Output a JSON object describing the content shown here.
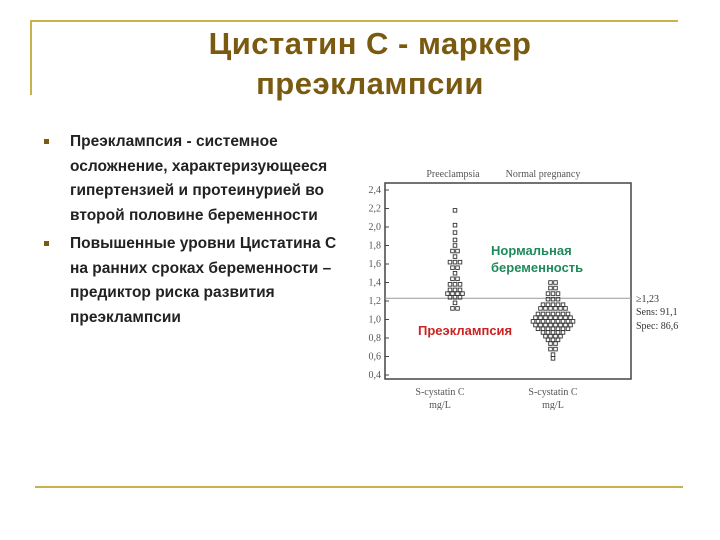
{
  "title": {
    "line1": "Цистатин С - маркер",
    "line2": "преэклампсии"
  },
  "bullets": [
    {
      "text": "Преэклампсия - системное осложнение, характеризующееся гипертензией и протеинурией во второй половине беременности"
    },
    {
      "text": "Повышенные уровни Цистатина С на ранних сроках беременности – предиктор риска развития преэклампсии"
    }
  ],
  "chart_data": {
    "type": "scatter",
    "y_ticks": [
      "2,4",
      "2,2",
      "2,0",
      "1,8",
      "1,6",
      "1,4",
      "1,2",
      "1,0",
      "0,8",
      "0,6",
      "0,4"
    ],
    "ylim": [
      0.4,
      2.4
    ],
    "groups": [
      {
        "header": "Preeclampsia",
        "xlabel_line1": "S-cystatin C",
        "xlabel_line2": "mg/L"
      },
      {
        "header": "Normal pregnancy",
        "xlabel_line1": "S-cystatin C",
        "xlabel_line2": "mg/L"
      }
    ],
    "cutoff": 1.23,
    "stats": [
      "≥1,23",
      "Sens: 91,1",
      "Spec: 86,6"
    ],
    "annotations": {
      "normal_line1": "Нормальная",
      "normal_line2": "беременность",
      "preeclampsia": "Преэклампсия"
    },
    "colors": {
      "normal": "#1e8a5a",
      "preeclampsia": "#cc2222"
    }
  }
}
